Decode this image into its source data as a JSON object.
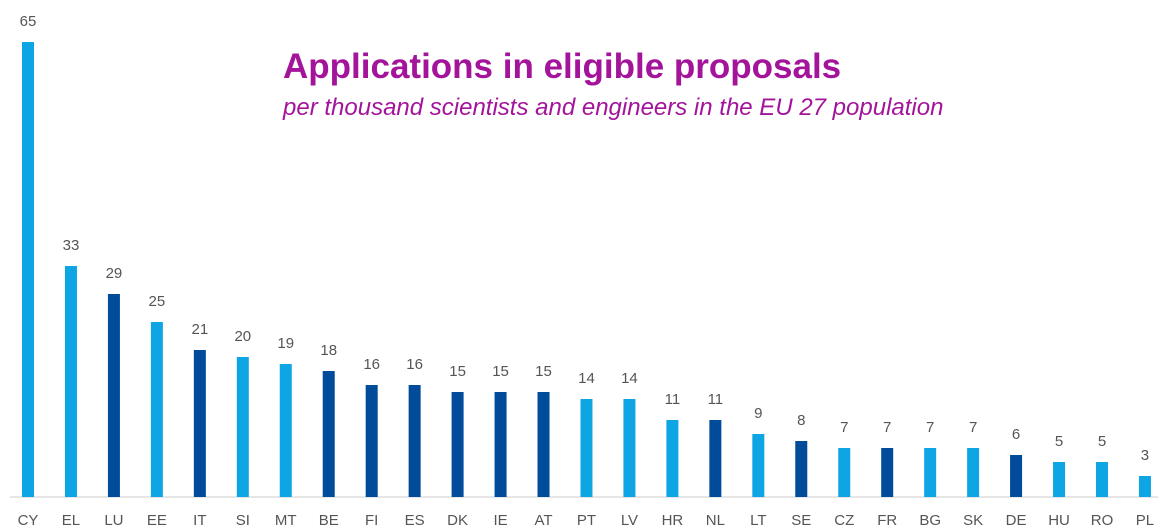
{
  "chart_data": {
    "type": "bar",
    "title": "Applications in eligible proposals",
    "subtitle": "per thousand scientists and engineers in the EU 27 population",
    "categories": [
      "CY",
      "EL",
      "LU",
      "EE",
      "IT",
      "SI",
      "MT",
      "BE",
      "FI",
      "ES",
      "DK",
      "IE",
      "AT",
      "PT",
      "LV",
      "HR",
      "NL",
      "LT",
      "SE",
      "CZ",
      "FR",
      "BG",
      "SK",
      "DE",
      "HU",
      "RO",
      "PL"
    ],
    "values": [
      65,
      33,
      29,
      25,
      21,
      20,
      19,
      18,
      16,
      16,
      15,
      15,
      15,
      14,
      14,
      11,
      11,
      9,
      8,
      7,
      7,
      7,
      7,
      6,
      5,
      5,
      3
    ],
    "colors": [
      "#0ea5e4",
      "#0ea5e4",
      "#004b9a",
      "#0ea5e4",
      "#004b9a",
      "#0ea5e4",
      "#0ea5e4",
      "#004b9a",
      "#004b9a",
      "#004b9a",
      "#004b9a",
      "#004b9a",
      "#004b9a",
      "#0ea5e4",
      "#0ea5e4",
      "#0ea5e4",
      "#004b9a",
      "#0ea5e4",
      "#004b9a",
      "#0ea5e4",
      "#004b9a",
      "#0ea5e4",
      "#0ea5e4",
      "#004b9a",
      "#0ea5e4",
      "#0ea5e4",
      "#0ea5e4"
    ],
    "ylim": [
      0,
      65
    ]
  }
}
